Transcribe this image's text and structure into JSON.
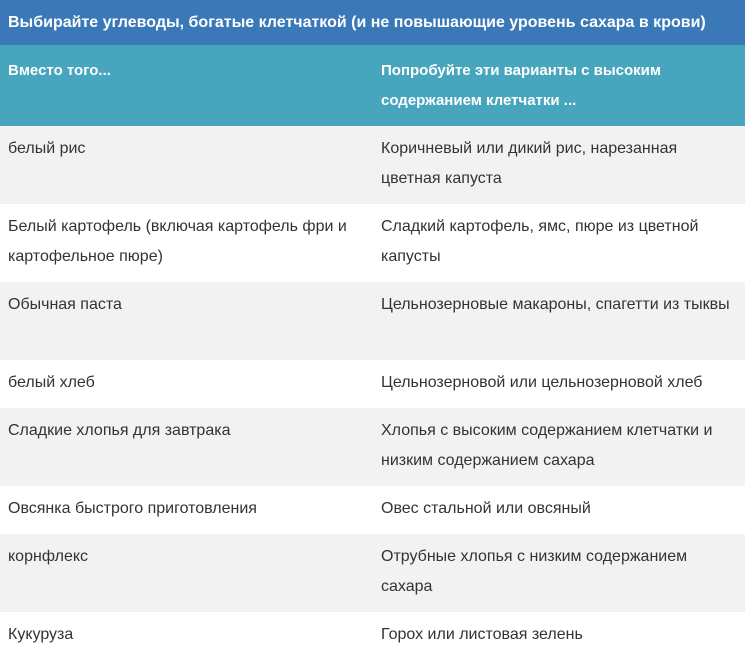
{
  "title": "Выбирайте углеводы, богатые клетчаткой (и не повышающие уровень сахара в крови)",
  "table": {
    "headers": [
      "Вместо того...",
      "Попробуйте эти варианты с высоким содержанием клетчатки ..."
    ],
    "rows": [
      [
        "белый рис",
        "Коричневый или дикий рис, нарезанная цветная капуста"
      ],
      [
        "Белый картофель (включая картофель фри и картофельное пюре)",
        "Сладкий картофель, ямс, пюре из цветной капусты"
      ],
      [
        "Обычная паста",
        "Цельнозерновые макароны, спагетти из тыквы"
      ],
      [
        "белый хлеб",
        "Цельнозерновой или цельнозерновой хлеб"
      ],
      [
        "Сладкие хлопья для завтрака",
        "Хлопья с высоким содержанием клетчатки и низким содержанием сахара"
      ],
      [
        "Овсянка быстрого приготовления",
        "Овес стальной или овсяный"
      ],
      [
        "корнфлекс",
        "Отрубные хлопья с низким содержанием сахара"
      ],
      [
        "Кукуруза",
        "Горох или листовая зелень"
      ]
    ]
  },
  "colors": {
    "title_bg": "#3a78b8",
    "header_bg": "#47a6bd",
    "row_alt_bg": "#f2f2f2",
    "text": "#333333"
  }
}
